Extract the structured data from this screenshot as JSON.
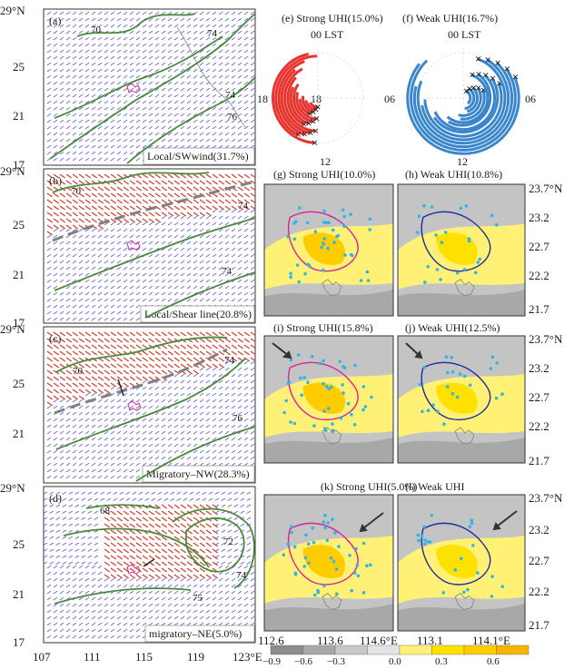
{
  "left_panels": [
    {
      "letter": "(a)",
      "caption": "Local/SWwind(31.7%)",
      "shear_line": false
    },
    {
      "letter": "(b)",
      "caption": "Local/Shear line(20.8%)",
      "shear_line": true
    },
    {
      "letter": "(c)",
      "caption": "Migratory–NW(28.3%)",
      "shear_line": true
    },
    {
      "letter": "(d)",
      "caption": "migratory–NE(5.0%)",
      "shear_line": false
    }
  ],
  "left_lat_ticks": [
    "29°N",
    "25",
    "21",
    "17"
  ],
  "left_lon_ticks": [
    "107",
    "111",
    "115",
    "119",
    "123°E"
  ],
  "left_contour_labels": [
    "74",
    "70",
    "74",
    "76",
    "74",
    "70",
    "74",
    "74",
    "70",
    "76",
    "68",
    "72",
    "74",
    "75"
  ],
  "rose_panels": [
    {
      "title": "(e) Strong UHI(15.0%)",
      "color": "#e8342f",
      "top_label": "00 LST",
      "bottom_label": "12",
      "left_label": "18",
      "right_label": "06",
      "center_label": "18"
    },
    {
      "title": "(f) Weak UHI(16.7%)",
      "color": "#3a86cc",
      "top_label": "00 LST",
      "bottom_label": "12",
      "left_label": "",
      "right_label": "06",
      "center_label": ""
    }
  ],
  "rose_marker_color": "#b35ac8",
  "map_panels": [
    {
      "title": "(g) Strong UHI(10.0%)",
      "kind": "strong",
      "arrow": false
    },
    {
      "title": "(h) Weak UHI(10.8%)",
      "kind": "weak",
      "arrow": false
    },
    {
      "title": "(i) Strong UHI(15.8%)",
      "kind": "strong",
      "arrow": true
    },
    {
      "title": "(j) Weak UHI(12.5%)",
      "kind": "weak",
      "arrow": true
    },
    {
      "title": "(k) Strong UHI(5.0%)",
      "kind": "strong",
      "arrow": true
    },
    {
      "title": "(l) Weak UHI",
      "kind": "weak",
      "arrow": true
    }
  ],
  "right_lat_ticks": [
    "23.7°N",
    "23.2",
    "22.7",
    "22.2",
    "21.7"
  ],
  "right_lon_ticks": [
    "112.6",
    "113.6",
    "114.6°E",
    "113.1",
    "114.1°E"
  ],
  "colorbar_ticks": [
    "−0.9",
    "−0.6",
    "−0.3",
    "0.0",
    "0.3",
    "0.6"
  ],
  "colorbar_colors": [
    "#8c8c8c",
    "#a8a8a8",
    "#c8c8c8",
    "#e4e4e4",
    "#fff176",
    "#ffe100",
    "#ffcc00",
    "#f6b500"
  ],
  "colors": {
    "wind_blue": "#5b5bd6",
    "wind_red": "#d03a26",
    "contour_green": "#4a8a3c",
    "coast": "#808080",
    "pink": "#d6239c",
    "navy": "#1f2a9c",
    "station": "#32b4e6"
  }
}
